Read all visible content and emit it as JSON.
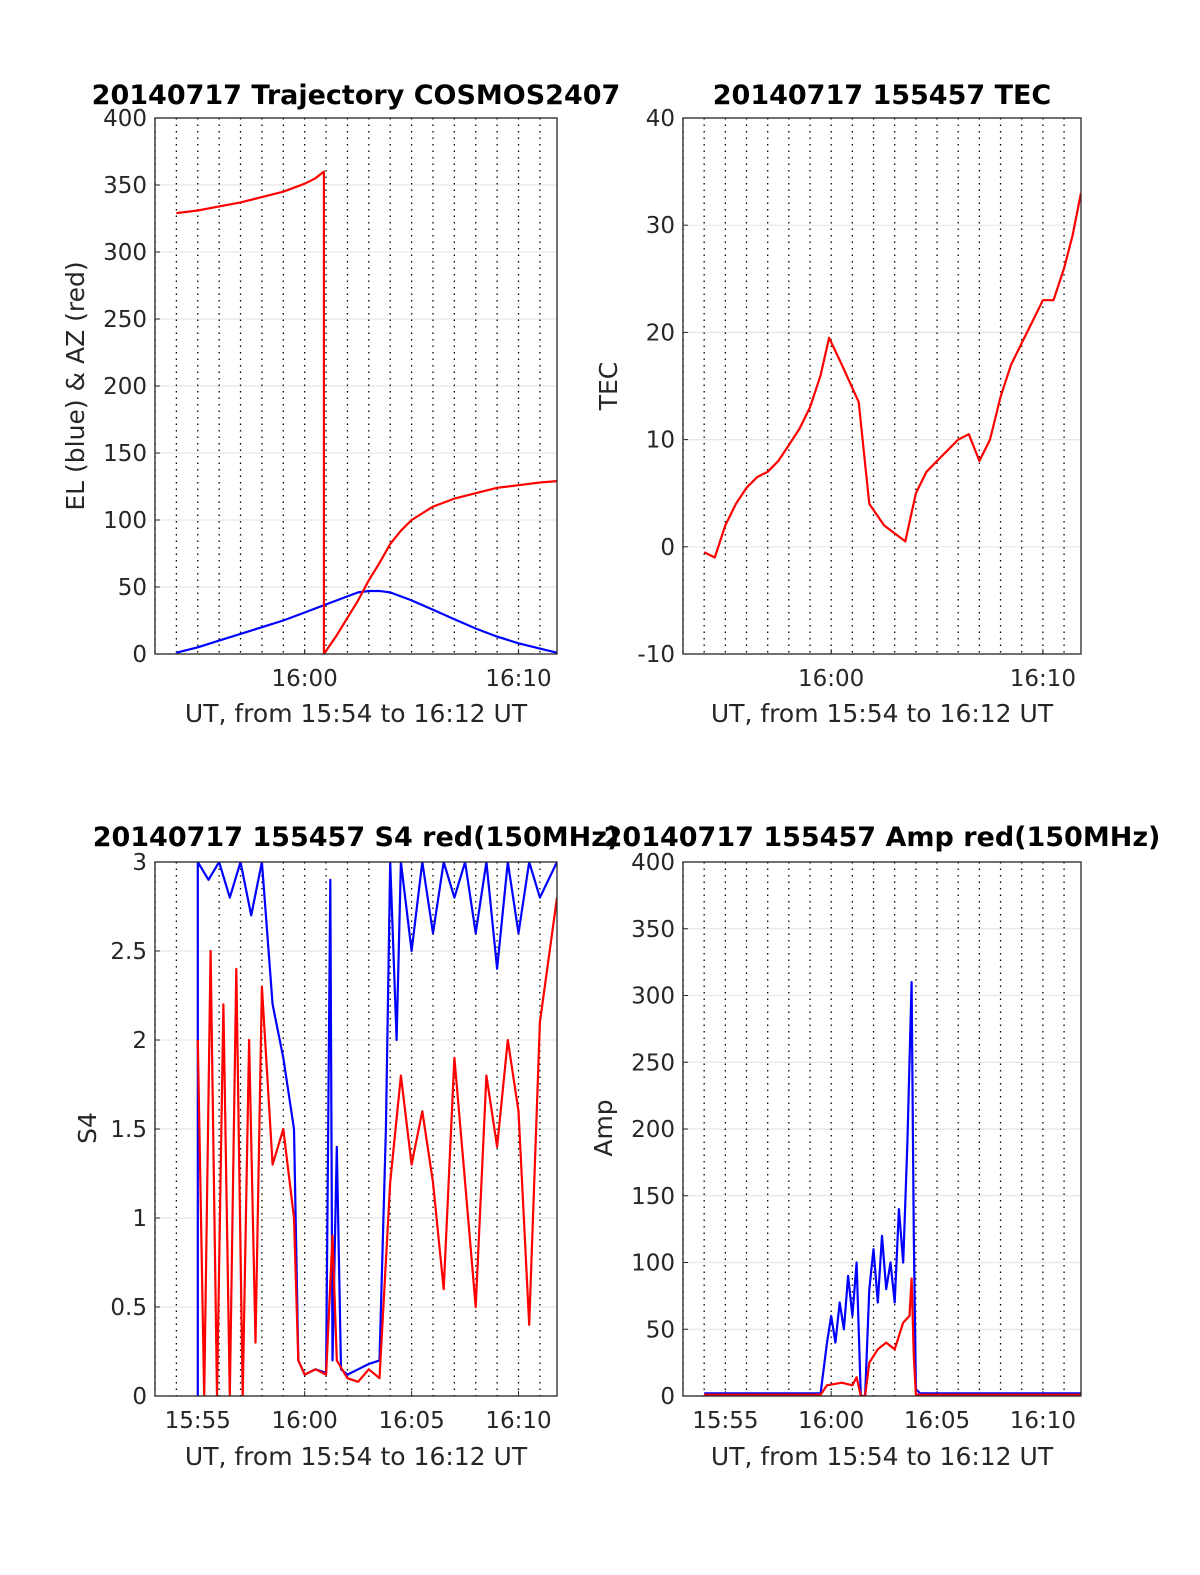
{
  "colors": {
    "el_line": "#0000ff",
    "az_line": "#ff0000",
    "axes": "#262626",
    "grid": "#e6e6e6",
    "minor_grid": "#000000"
  },
  "chart_data": [
    {
      "type": "line",
      "title": "20140717 Trajectory COSMOS2407",
      "xlabel": "UT, from 15:54 to 16:12 UT",
      "ylabel": "EL (blue) & AZ (red)",
      "xlim": [
        "15:53.0",
        "16:11.8"
      ],
      "ylim": [
        0,
        400
      ],
      "x_ticks": [
        "16:00",
        "16:10"
      ],
      "y_ticks": [
        "0",
        "50",
        "100",
        "150",
        "200",
        "250",
        "300",
        "350",
        "400"
      ],
      "grid": true,
      "series": [
        {
          "name": "EL (blue)",
          "color": "#0000ff",
          "points": [
            [
              "15:54.0",
              1
            ],
            [
              "15:55.0",
              5
            ],
            [
              "15:56.0",
              10
            ],
            [
              "15:57.0",
              15
            ],
            [
              "15:58.0",
              20
            ],
            [
              "15:59.0",
              25
            ],
            [
              "16:00.0",
              31
            ],
            [
              "16:01.0",
              37
            ],
            [
              "16:02.0",
              43
            ],
            [
              "16:02.5",
              46
            ],
            [
              "16:03.0",
              47
            ],
            [
              "16:03.5",
              47
            ],
            [
              "16:04.0",
              46
            ],
            [
              "16:05.0",
              40
            ],
            [
              "16:06.0",
              33
            ],
            [
              "16:07.0",
              26
            ],
            [
              "16:08.0",
              19
            ],
            [
              "16:09.0",
              13
            ],
            [
              "16:10.0",
              8
            ],
            [
              "16:11.0",
              4
            ],
            [
              "16:11.8",
              1
            ]
          ]
        },
        {
          "name": "AZ (red)",
          "color": "#ff0000",
          "points": [
            [
              "15:54.0",
              329
            ],
            [
              "15:55.0",
              331
            ],
            [
              "15:56.0",
              334
            ],
            [
              "15:57.0",
              337
            ],
            [
              "15:58.0",
              341
            ],
            [
              "15:59.0",
              345
            ],
            [
              "16:00.0",
              351
            ],
            [
              "16:00.5",
              355
            ],
            [
              "16:00.9",
              360
            ],
            [
              "16:00.9",
              0
            ],
            [
              "16:01.5",
              14
            ],
            [
              "16:02.0",
              27
            ],
            [
              "16:02.5",
              40
            ],
            [
              "16:03.0",
              55
            ],
            [
              "16:03.5",
              68
            ],
            [
              "16:04.0",
              82
            ],
            [
              "16:04.5",
              92
            ],
            [
              "16:05.0",
              100
            ],
            [
              "16:06.0",
              110
            ],
            [
              "16:07.0",
              116
            ],
            [
              "16:08.0",
              120
            ],
            [
              "16:09.0",
              124
            ],
            [
              "16:10.0",
              126
            ],
            [
              "16:11.0",
              128
            ],
            [
              "16:11.8",
              129
            ]
          ]
        }
      ]
    },
    {
      "type": "line",
      "title": "20140717 155457 TEC",
      "xlabel": "UT, from 15:54 to 16:12 UT",
      "ylabel": "TEC",
      "xlim": [
        "15:53.0",
        "16:11.8"
      ],
      "ylim": [
        -10,
        40
      ],
      "x_ticks": [
        "16:00",
        "16:10"
      ],
      "y_ticks": [
        "-10",
        "0",
        "10",
        "20",
        "30",
        "40"
      ],
      "grid": true,
      "series": [
        {
          "name": "",
          "color": "#ff0000",
          "points": [
            [
              "15:54.0",
              -0.5
            ],
            [
              "15:54.5",
              -1
            ],
            [
              "15:55.0",
              2
            ],
            [
              "15:55.5",
              4
            ],
            [
              "15:56.0",
              5.5
            ],
            [
              "15:56.5",
              6.5
            ],
            [
              "15:57.0",
              7
            ],
            [
              "15:57.5",
              8
            ],
            [
              "15:58.0",
              9.5
            ],
            [
              "15:58.5",
              11
            ],
            [
              "15:59.0",
              13
            ],
            [
              "15:59.5",
              16
            ],
            [
              "15:59.9",
              19.5
            ],
            [
              "16:00.5",
              17
            ],
            [
              "16:01.3",
              13.5
            ],
            [
              "16:01.8",
              4
            ],
            [
              "16:02.5",
              2
            ],
            [
              "16:03.5",
              0.5
            ],
            [
              "16:04.0",
              5
            ],
            [
              "16:04.5",
              7
            ],
            [
              "16:05.0",
              8
            ],
            [
              "16:05.5",
              9
            ],
            [
              "16:06.0",
              10
            ],
            [
              "16:06.5",
              10.5
            ],
            [
              "16:07.0",
              8
            ],
            [
              "16:07.5",
              10
            ],
            [
              "16:08.0",
              14
            ],
            [
              "16:08.5",
              17
            ],
            [
              "16:09.0",
              19
            ],
            [
              "16:09.5",
              21
            ],
            [
              "16:10.0",
              23
            ],
            [
              "16:10.5",
              23
            ],
            [
              "16:11.0",
              26
            ],
            [
              "16:11.4",
              29
            ],
            [
              "16:11.8",
              33
            ]
          ]
        }
      ]
    },
    {
      "type": "line",
      "title": "20140717 155457 S4 red(150MHz)",
      "xlabel": "UT, from 15:54 to 16:12 UT",
      "ylabel": "S4",
      "xlim": [
        "15:53.0",
        "16:11.8"
      ],
      "ylim": [
        0,
        3
      ],
      "x_ticks": [
        "15:55",
        "16:00",
        "16:05",
        "16:10"
      ],
      "y_ticks": [
        "0",
        "0.5",
        "1",
        "1.5",
        "2",
        "2.5",
        "3"
      ],
      "grid": true,
      "series": [
        {
          "name": "",
          "color": "#0000ff",
          "points": [
            [
              "15:55.0",
              0
            ],
            [
              "15:55.0",
              3
            ],
            [
              "15:55.5",
              2.9
            ],
            [
              "15:56.0",
              3
            ],
            [
              "15:56.5",
              2.8
            ],
            [
              "15:57.0",
              3
            ],
            [
              "15:57.5",
              2.7
            ],
            [
              "15:58.0",
              3
            ],
            [
              "15:58.5",
              2.2
            ],
            [
              "15:59.0",
              1.9
            ],
            [
              "15:59.5",
              1.5
            ],
            [
              "15:59.7",
              0.2
            ],
            [
              "16:00.0",
              0.12
            ],
            [
              "16:00.5",
              0.15
            ],
            [
              "16:01.0",
              0.13
            ],
            [
              "16:01.2",
              2.9
            ],
            [
              "16:01.3",
              0.2
            ],
            [
              "16:01.5",
              1.4
            ],
            [
              "16:01.7",
              0.15
            ],
            [
              "16:02.0",
              0.12
            ],
            [
              "16:02.5",
              0.15
            ],
            [
              "16:03.0",
              0.18
            ],
            [
              "16:03.5",
              0.2
            ],
            [
              "16:03.8",
              1.5
            ],
            [
              "16:04.0",
              3
            ],
            [
              "16:04.3",
              2
            ],
            [
              "16:04.5",
              3
            ],
            [
              "16:05.0",
              2.5
            ],
            [
              "16:05.5",
              3
            ],
            [
              "16:06.0",
              2.6
            ],
            [
              "16:06.5",
              3
            ],
            [
              "16:07.0",
              2.8
            ],
            [
              "16:07.5",
              3
            ],
            [
              "16:08.0",
              2.6
            ],
            [
              "16:08.5",
              3
            ],
            [
              "16:09.0",
              2.4
            ],
            [
              "16:09.5",
              3
            ],
            [
              "16:10.0",
              2.6
            ],
            [
              "16:10.5",
              3
            ],
            [
              "16:11.0",
              2.8
            ],
            [
              "16:11.8",
              3
            ]
          ]
        },
        {
          "name": "",
          "color": "#ff0000",
          "points": [
            [
              "15:55.0",
              2
            ],
            [
              "15:55.3",
              0
            ],
            [
              "15:55.6",
              2.5
            ],
            [
              "15:55.9",
              0
            ],
            [
              "15:56.2",
              2.2
            ],
            [
              "15:56.5",
              0
            ],
            [
              "15:56.8",
              2.4
            ],
            [
              "15:57.1",
              0
            ],
            [
              "15:57.4",
              2
            ],
            [
              "15:57.7",
              0.3
            ],
            [
              "15:58.0",
              2.3
            ],
            [
              "15:58.5",
              1.3
            ],
            [
              "15:59.0",
              1.5
            ],
            [
              "15:59.5",
              1
            ],
            [
              "15:59.7",
              0.2
            ],
            [
              "16:00.0",
              0.12
            ],
            [
              "16:00.5",
              0.15
            ],
            [
              "16:01.0",
              0.12
            ],
            [
              "16:01.3",
              0.9
            ],
            [
              "16:01.5",
              0.2
            ],
            [
              "16:02.0",
              0.1
            ],
            [
              "16:02.5",
              0.08
            ],
            [
              "16:03.0",
              0.15
            ],
            [
              "16:03.5",
              0.1
            ],
            [
              "16:04.0",
              1.2
            ],
            [
              "16:04.5",
              1.8
            ],
            [
              "16:05.0",
              1.3
            ],
            [
              "16:05.5",
              1.6
            ],
            [
              "16:06.0",
              1.2
            ],
            [
              "16:06.5",
              0.6
            ],
            [
              "16:07.0",
              1.9
            ],
            [
              "16:07.5",
              1.2
            ],
            [
              "16:08.0",
              0.5
            ],
            [
              "16:08.5",
              1.8
            ],
            [
              "16:09.0",
              1.4
            ],
            [
              "16:09.5",
              2
            ],
            [
              "16:10.0",
              1.6
            ],
            [
              "16:10.5",
              0.4
            ],
            [
              "16:11.0",
              2.1
            ],
            [
              "16:11.8",
              2.8
            ]
          ]
        }
      ]
    },
    {
      "type": "line",
      "title": "20140717 155457 Amp red(150MHz)",
      "xlabel": "UT, from 15:54 to 16:12 UT",
      "ylabel": "Amp",
      "xlim": [
        "15:53.0",
        "16:11.8"
      ],
      "ylim": [
        0,
        400
      ],
      "x_ticks": [
        "15:55",
        "16:00",
        "16:05",
        "16:10"
      ],
      "y_ticks": [
        "0",
        "50",
        "100",
        "150",
        "200",
        "250",
        "300",
        "350",
        "400"
      ],
      "grid": true,
      "series": [
        {
          "name": "",
          "color": "#0000ff",
          "points": [
            [
              "15:54.0",
              2
            ],
            [
              "15:59.5",
              2
            ],
            [
              "15:59.8",
              40
            ],
            [
              "16:00.0",
              60
            ],
            [
              "16:00.2",
              40
            ],
            [
              "16:00.4",
              70
            ],
            [
              "16:00.6",
              50
            ],
            [
              "16:00.8",
              90
            ],
            [
              "16:01.0",
              60
            ],
            [
              "16:01.2",
              100
            ],
            [
              "16:01.4",
              0
            ],
            [
              "16:01.6",
              0
            ],
            [
              "16:01.8",
              80
            ],
            [
              "16:02.0",
              110
            ],
            [
              "16:02.2",
              70
            ],
            [
              "16:02.4",
              120
            ],
            [
              "16:02.6",
              80
            ],
            [
              "16:02.8",
              100
            ],
            [
              "16:03.0",
              70
            ],
            [
              "16:03.2",
              140
            ],
            [
              "16:03.4",
              100
            ],
            [
              "16:03.6",
              190
            ],
            [
              "16:03.8",
              310
            ],
            [
              "16:03.9",
              120
            ],
            [
              "16:04.0",
              5
            ],
            [
              "16:04.2",
              2
            ],
            [
              "16:11.8",
              2
            ]
          ]
        },
        {
          "name": "",
          "color": "#ff0000",
          "points": [
            [
              "15:54.0",
              1
            ],
            [
              "15:59.5",
              1
            ],
            [
              "15:59.8",
              8
            ],
            [
              "16:00.5",
              10
            ],
            [
              "16:01.0",
              8
            ],
            [
              "16:01.2",
              14
            ],
            [
              "16:01.4",
              0
            ],
            [
              "16:01.6",
              0
            ],
            [
              "16:01.8",
              25
            ],
            [
              "16:02.2",
              35
            ],
            [
              "16:02.6",
              40
            ],
            [
              "16:03.0",
              35
            ],
            [
              "16:03.4",
              55
            ],
            [
              "16:03.7",
              60
            ],
            [
              "16:03.8",
              88
            ],
            [
              "16:03.9",
              30
            ],
            [
              "16:04.0",
              1
            ],
            [
              "16:11.8",
              1
            ]
          ]
        }
      ]
    }
  ]
}
